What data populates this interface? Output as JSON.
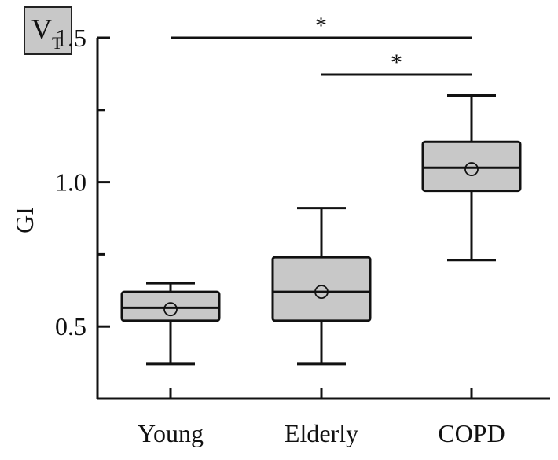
{
  "panel_label": {
    "main": "V",
    "sub": "T"
  },
  "chart_data": {
    "type": "box",
    "categories": [
      "Young",
      "Elderly",
      "COPD"
    ],
    "ylabel": "GI",
    "xlabel": "",
    "ylim": [
      0.25,
      1.5
    ],
    "yticks_major": [
      0.5,
      1.0,
      1.5
    ],
    "yticks_labels": [
      "0.5",
      "1.0",
      "1.5"
    ],
    "yticks_minor": [
      0.75,
      1.25
    ],
    "boxes": [
      {
        "category": "Young",
        "whisker_low": 0.37,
        "q1": 0.52,
        "median": 0.565,
        "q3": 0.62,
        "whisker_high": 0.65,
        "mean": 0.56
      },
      {
        "category": "Elderly",
        "whisker_low": 0.37,
        "q1": 0.52,
        "median": 0.62,
        "q3": 0.74,
        "whisker_high": 0.91,
        "mean": 0.62
      },
      {
        "category": "COPD",
        "whisker_low": 0.73,
        "q1": 0.97,
        "median": 1.05,
        "q3": 1.14,
        "whisker_high": 1.3,
        "mean": 1.045
      }
    ],
    "significance": [
      {
        "from": "Young",
        "to": "COPD",
        "label": "*"
      },
      {
        "from": "Elderly",
        "to": "COPD",
        "label": "*"
      }
    ],
    "box_fill": "#c8c8c8",
    "line_color": "#111111",
    "grid": false
  }
}
